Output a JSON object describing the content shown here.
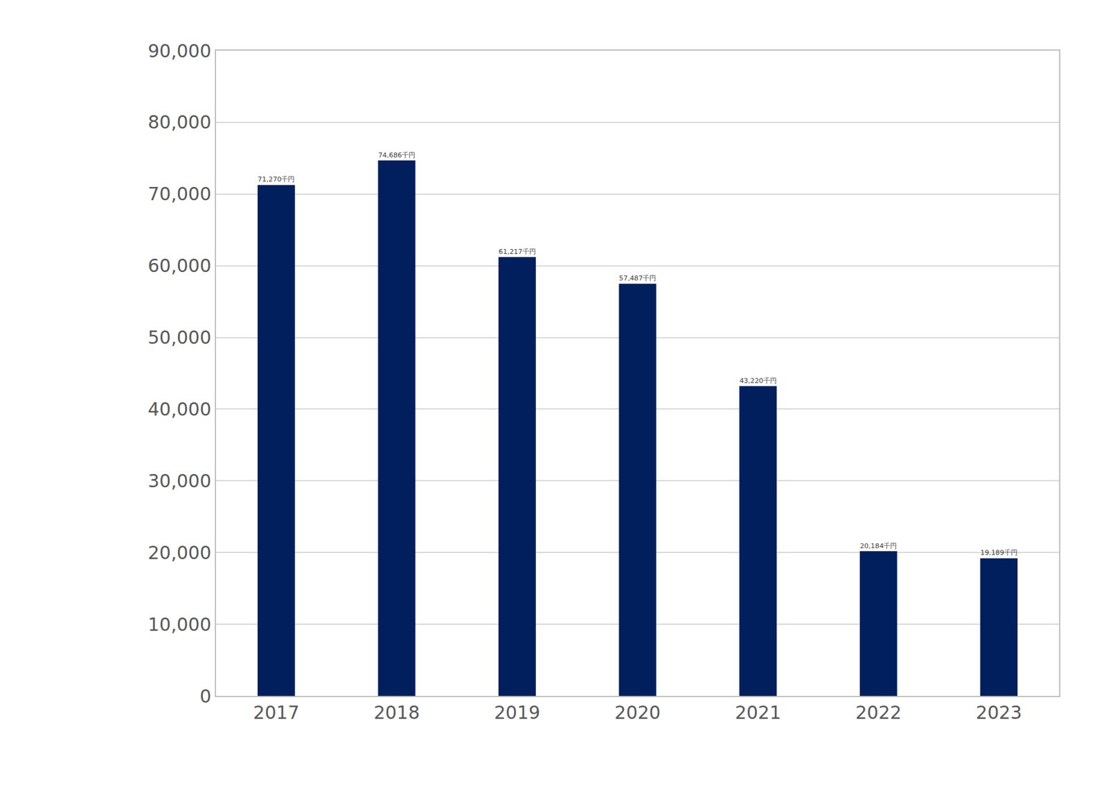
{
  "chart_data": {
    "type": "bar",
    "categories": [
      "2017",
      "2018",
      "2019",
      "2020",
      "2021",
      "2022",
      "2023"
    ],
    "values": [
      71270,
      74686,
      61217,
      57487,
      43220,
      20184,
      19189
    ],
    "value_labels": [
      "71,270千円",
      "74,686千円",
      "61,217千円",
      "57,487千円",
      "43,220千円",
      "20,184千円",
      "19,189千円"
    ],
    "data_labels": true,
    "color": "#001f5c",
    "ylim": [
      0,
      90000
    ],
    "yticks": [
      0,
      {
        "value": 10000,
        "label": "10,000"
      },
      {
        "value": 20000,
        "label": "20,000"
      },
      {
        "value": 30000,
        "label": "30,000"
      },
      {
        "value": 40000,
        "label": "40,000"
      },
      {
        "value": 50000,
        "label": "50,000"
      },
      {
        "value": 60000,
        "label": "60,000"
      },
      {
        "value": 70000,
        "label": "70,000"
      },
      {
        "value": 80000,
        "label": "80,000"
      },
      {
        "value": 90000,
        "label": "90,000"
      }
    ],
    "grid": true
  }
}
